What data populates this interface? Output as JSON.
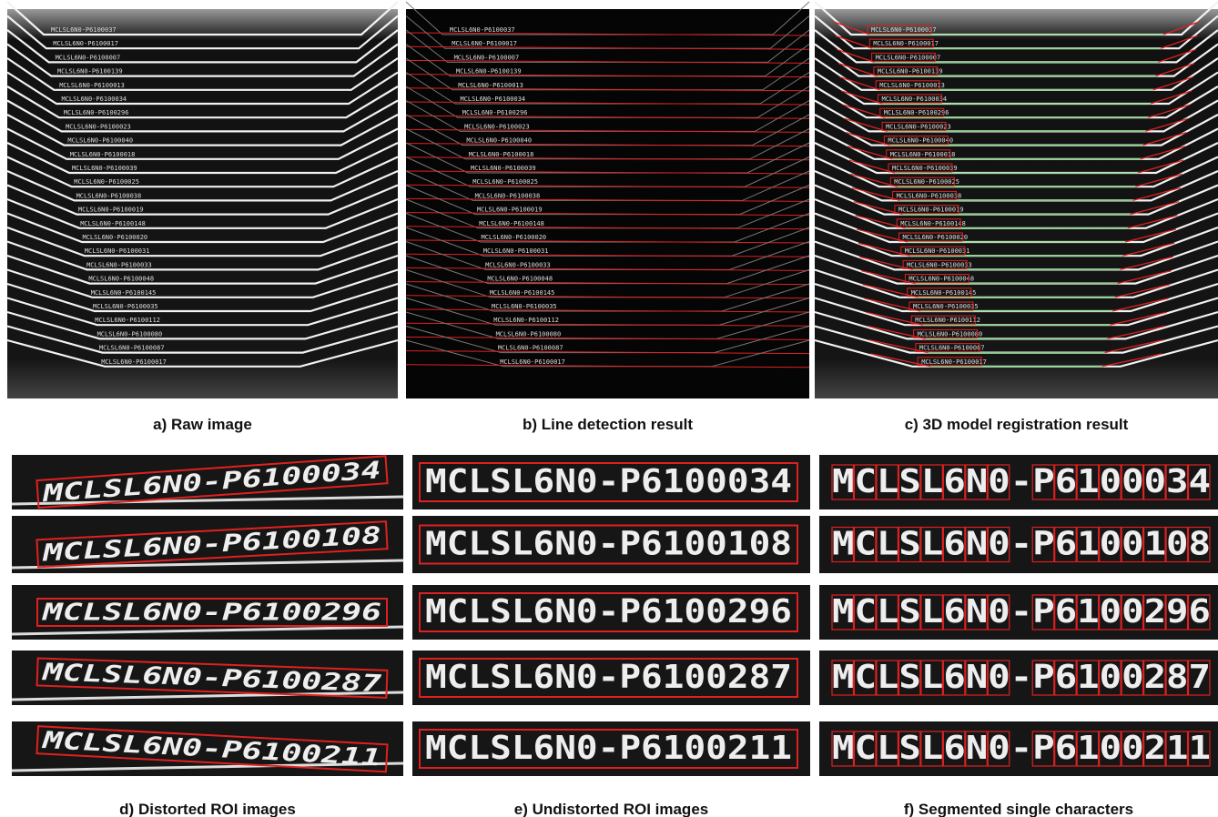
{
  "captions": [
    "a) Raw image",
    "b) Line detection result",
    "c) 3D model registration result",
    "d) Distorted ROI images",
    "e) Undistorted ROI images",
    "f) Segmented single characters"
  ],
  "top_labels": [
    "MCLSL6N0-P6100037",
    "MCLSL6N0-P6100017",
    "MCLSL6N0-P6100007",
    "MCLSL6N0-P6100139",
    "MCLSL6N0-P6100013",
    "MCLSL6N0-P6100034",
    "MCLSL6N0-P6100296",
    "MCLSL6N0-P6100023",
    "MCLSL6N0-P6100040",
    "MCLSL6N0-P6100018",
    "MCLSL6N0-P6100039",
    "MCLSL6N0-P6100025",
    "MCLSL6N0-P6100038",
    "MCLSL6N0-P6100019",
    "MCLSL6N0-P6100148",
    "MCLSL6N0-P6100020",
    "MCLSL6N0-P6100031",
    "MCLSL6N0-P6100033",
    "MCLSL6N0-P6100048",
    "MCLSL6N0-P6100145",
    "MCLSL6N0-P6100035",
    "MCLSL6N0-P6100112",
    "MCLSL6N0-P6100080",
    "MCLSL6N0-P6100087",
    "MCLSL6N0-P6100017"
  ],
  "roi_labels": [
    "MCLSL6N0-P6100034",
    "MCLSL6N0-P6100108",
    "MCLSL6N0-P6100296",
    "MCLSL6N0-P6100287",
    "MCLSL6N0-P6100211"
  ]
}
